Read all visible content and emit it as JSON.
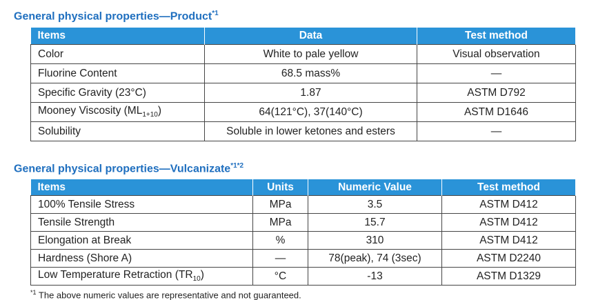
{
  "sections": [
    {
      "title": "General physical properties—Product",
      "title_note": "*1",
      "table": {
        "header": [
          "Items",
          "Data",
          "Test method"
        ],
        "rows": [
          [
            "Color",
            "White to pale yellow",
            "Visual observation"
          ],
          [
            "Fluorine Content",
            "68.5 mass%",
            "—"
          ],
          [
            "Specific Gravity (23°C)",
            "1.87",
            "ASTM D792"
          ],
          [
            {
              "text": "Mooney Viscosity (ML",
              "sub": "1+10",
              "after": ")"
            },
            "64(121°C), 37(140°C)",
            "ASTM D1646"
          ],
          [
            "Solubility",
            "Soluble in lower ketones and esters",
            "—"
          ]
        ]
      }
    },
    {
      "title": "General physical properties—Vulcanizate",
      "title_note": "*1*2",
      "table": {
        "header": [
          "Items",
          "Units",
          "Numeric Value",
          "Test method"
        ],
        "rows": [
          [
            "100% Tensile Stress",
            "MPa",
            "3.5",
            "ASTM D412"
          ],
          [
            "Tensile Strength",
            "MPa",
            "15.7",
            "ASTM D412"
          ],
          [
            "Elongation at Break",
            "%",
            "310",
            "ASTM D412"
          ],
          [
            "Hardness (Shore A)",
            "—",
            "78(peak), 74 (3sec)",
            "ASTM D2240"
          ],
          [
            {
              "text": "Low Temperature Retraction (TR",
              "sub": "10",
              "after": ")"
            },
            "°C",
            "-13",
            "ASTM D1329"
          ]
        ]
      }
    }
  ],
  "footnote": {
    "mark": "*1",
    "text": " The above numeric values are representative and not guaranteed."
  }
}
